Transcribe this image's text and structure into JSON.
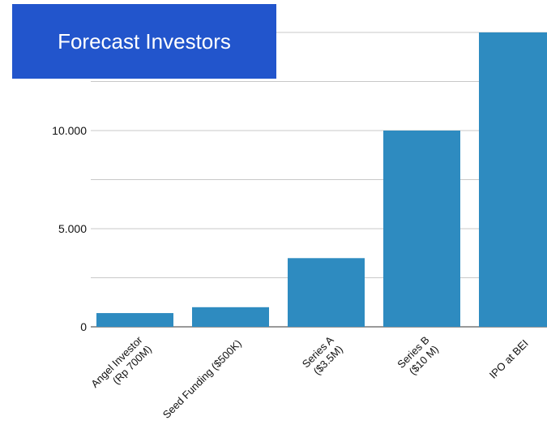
{
  "chart_data": {
    "type": "bar",
    "title": "Forecast Investors",
    "categories": [
      [
        "Angel Investor",
        "(Rp 700M)"
      ],
      [
        "Seed Funding ($500K)"
      ],
      [
        "Series A",
        "($3.5M)"
      ],
      [
        "Series B",
        "($10 M)"
      ],
      [
        "IPO at BEI"
      ]
    ],
    "values": [
      700,
      1000,
      3500,
      10000,
      15000
    ],
    "ylim": [
      0,
      15000
    ],
    "yticks": [
      {
        "value": 0,
        "label": "0"
      },
      {
        "value": 5000,
        "label": "5.000"
      },
      {
        "value": 10000,
        "label": "10.000"
      }
    ],
    "grid": true,
    "legend": "none",
    "bar_color": "#2e8bc0",
    "grid_color": "#c8c8c8",
    "title_bg": "#2255cc"
  }
}
